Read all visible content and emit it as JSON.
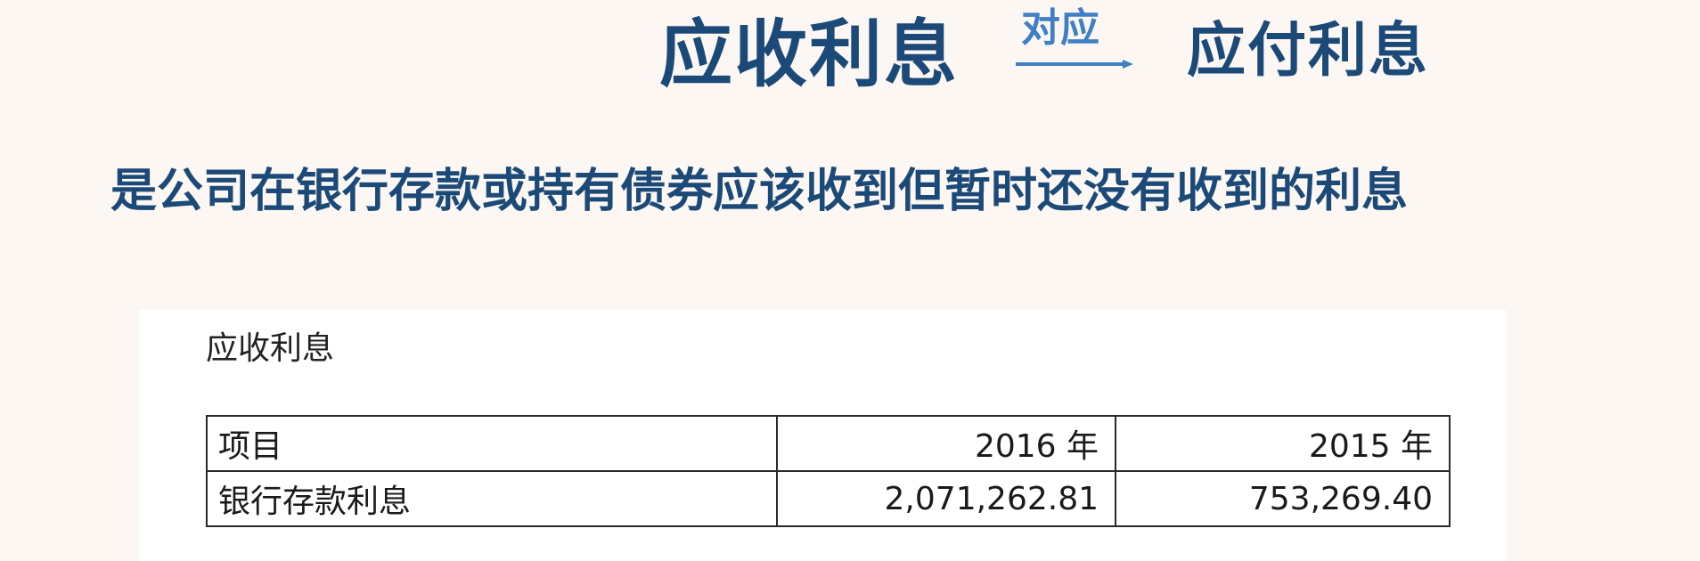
{
  "header": {
    "left_term": "应收利息",
    "relation_label": "对应",
    "right_term": "应付利息"
  },
  "definition": "是公司在银行存款或持有债券应该收到但暂时还没有收到的利息",
  "document": {
    "heading": "应收利息",
    "table": {
      "columns": [
        "项目",
        "2016 年",
        "2015 年"
      ],
      "rows": [
        {
          "item": "银行存款利息",
          "y2016": "2,071,262.81",
          "y2015": "753,269.40"
        }
      ]
    }
  },
  "colors": {
    "background": "#fdf7f3",
    "title": "#1c4a78",
    "accent": "#3f7fc4"
  },
  "icons": {
    "relation_arrow": "arrow-right-icon"
  }
}
